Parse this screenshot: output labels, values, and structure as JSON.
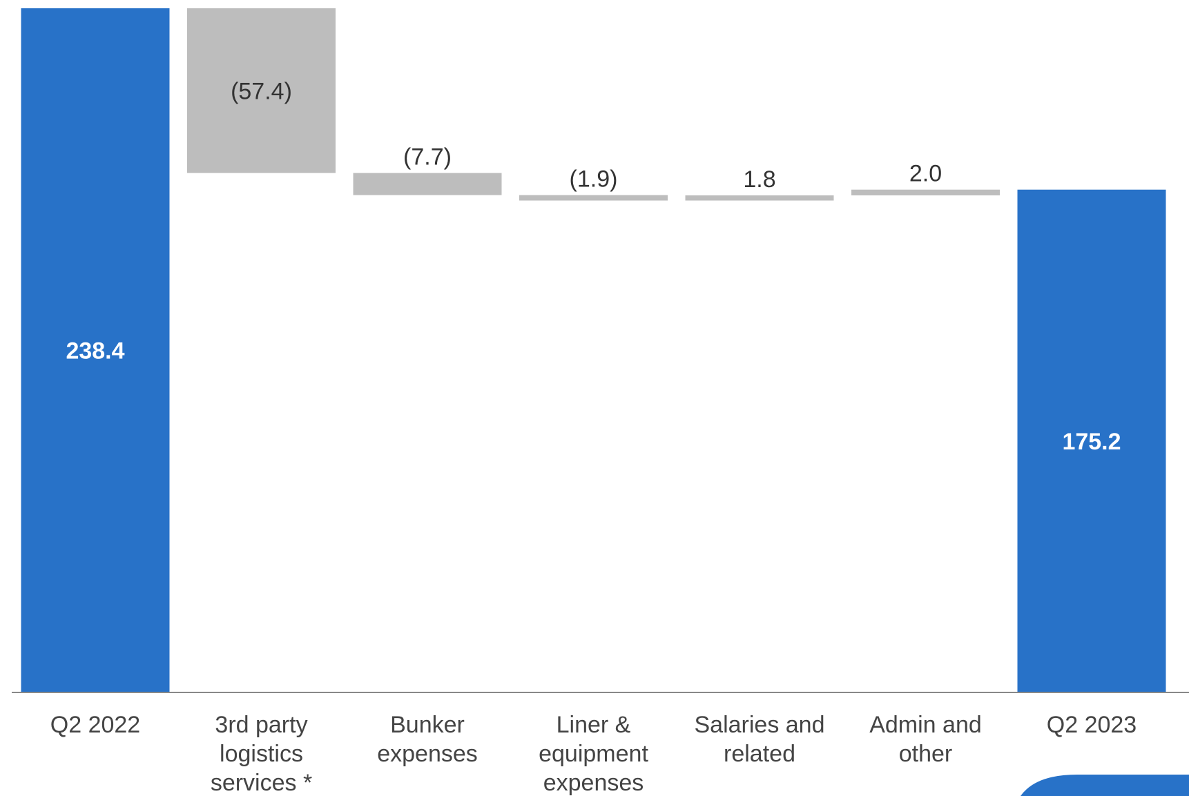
{
  "colors": {
    "total": "#2872C8",
    "change": "#BDBDBD",
    "axis": "#888888",
    "corner_badge": "#2872C8"
  },
  "chart_data": {
    "type": "bar",
    "variant": "waterfall",
    "title": "",
    "xlabel": "",
    "ylabel": "",
    "ylim": [
      0,
      238.4
    ],
    "categories": [
      "Q2 2022",
      "3rd party logistics services *",
      "Bunker expenses",
      "Liner & equipment expenses",
      "Salaries and related",
      "Admin and other",
      "Q2 2023"
    ],
    "category_lines": [
      [
        "Q2 2022"
      ],
      [
        "3rd party",
        "logistics",
        "services *"
      ],
      [
        "Bunker",
        "expenses"
      ],
      [
        "Liner &",
        "equipment",
        "expenses"
      ],
      [
        "Salaries and",
        "related"
      ],
      [
        "Admin and",
        "other"
      ],
      [
        "Q2 2023"
      ]
    ],
    "values": [
      238.4,
      -57.4,
      -7.7,
      -1.9,
      1.8,
      2.0,
      175.2
    ],
    "kinds": [
      "total",
      "change",
      "change",
      "change",
      "change",
      "change",
      "total"
    ],
    "data_labels": [
      "238.4",
      "(57.4)",
      "(7.7)",
      "(1.9)",
      "1.8",
      "2.0",
      "175.2"
    ],
    "grid": false,
    "legend": "none"
  }
}
